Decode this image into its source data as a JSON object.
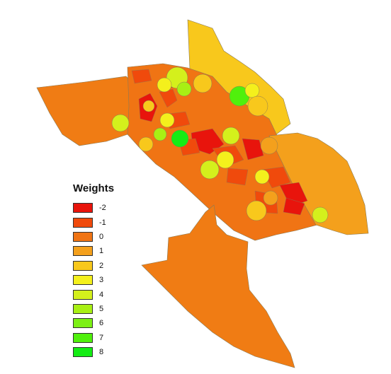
{
  "legend": {
    "title": "Weights",
    "classes": [
      {
        "label": "-2",
        "value": -2,
        "color": "#e8140c"
      },
      {
        "label": "-1",
        "value": -1,
        "color": "#f04a0c"
      },
      {
        "label": "0",
        "value": 0,
        "color": "#f07414"
      },
      {
        "label": "1",
        "value": 1,
        "color": "#f4a01c"
      },
      {
        "label": "2",
        "value": 2,
        "color": "#f8c81c"
      },
      {
        "label": "3",
        "value": 3,
        "color": "#f4f01c"
      },
      {
        "label": "4",
        "value": 4,
        "color": "#d4f01c"
      },
      {
        "label": "5",
        "value": 5,
        "color": "#a8f014"
      },
      {
        "label": "6",
        "value": 6,
        "color": "#7cf014"
      },
      {
        "label": "7",
        "value": 7,
        "color": "#50f00c"
      },
      {
        "label": "8",
        "value": 8,
        "color": "#14ec14"
      }
    ]
  },
  "colors": {
    "background": "#ffffff",
    "boundary": "#8a7a55"
  }
}
